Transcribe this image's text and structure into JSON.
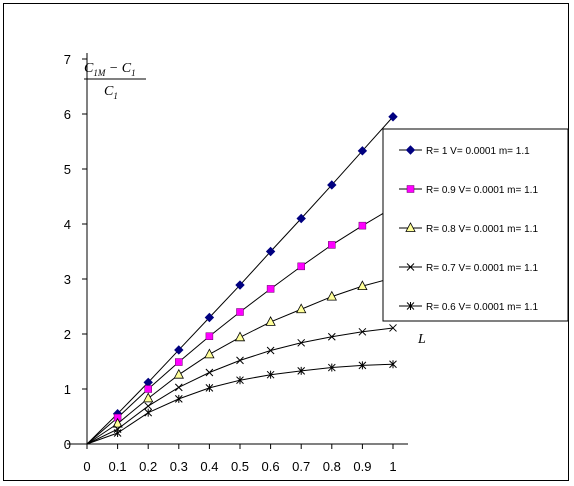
{
  "chart_data": {
    "type": "line",
    "ylabel_numerator": "C",
    "ylabel_numerator_sub": "1M",
    "ylabel_minus": " − C",
    "ylabel_minus_sub": "1",
    "ylabel_denominator": "C",
    "ylabel_denominator_sub": "1",
    "xlabel": "L",
    "xlim": [
      0,
      1
    ],
    "ylim": [
      0,
      7
    ],
    "x_ticks": [
      "0",
      "0.1",
      "0.2",
      "0.3",
      "0.4",
      "0.5",
      "0.6",
      "0.7",
      "0.8",
      "0.9",
      "1"
    ],
    "y_ticks": [
      "0",
      "1",
      "2",
      "3",
      "4",
      "5",
      "6",
      "7"
    ],
    "grid": false,
    "legend_placement": "right",
    "x": [
      0,
      0.1,
      0.2,
      0.3,
      0.4,
      0.5,
      0.6,
      0.7,
      0.8,
      0.9,
      1.0
    ],
    "series": [
      {
        "name": "R= 1 V= 0.0001 m= 1.1",
        "marker": "diamond",
        "color": "#000080",
        "values": [
          0,
          0.55,
          1.12,
          1.71,
          2.3,
          2.89,
          3.5,
          4.1,
          4.71,
          5.33,
          5.95
        ]
      },
      {
        "name": "R= 0.9 V= 0.0001 m= 1.1",
        "marker": "square",
        "color": "#ff00ff",
        "values": [
          0,
          0.48,
          1.0,
          1.49,
          1.96,
          2.4,
          2.82,
          3.23,
          3.62,
          3.97,
          4.3
        ]
      },
      {
        "name": "R= 0.8 V= 0.0001 m= 1.1",
        "marker": "triangle",
        "color": "#ffff99",
        "values": [
          0,
          0.37,
          0.83,
          1.26,
          1.63,
          1.94,
          2.22,
          2.45,
          2.68,
          2.87,
          3.02
        ]
      },
      {
        "name": "R= 0.7 V= 0.0001 m= 1.1",
        "marker": "x",
        "color": "#000000",
        "values": [
          0,
          0.27,
          0.69,
          1.03,
          1.3,
          1.52,
          1.7,
          1.84,
          1.95,
          2.04,
          2.11
        ]
      },
      {
        "name": "R= 0.6 V= 0.0001 m= 1.1",
        "marker": "star",
        "color": "#000000",
        "values": [
          0,
          0.2,
          0.57,
          0.82,
          1.02,
          1.16,
          1.26,
          1.33,
          1.39,
          1.43,
          1.45
        ]
      }
    ]
  }
}
